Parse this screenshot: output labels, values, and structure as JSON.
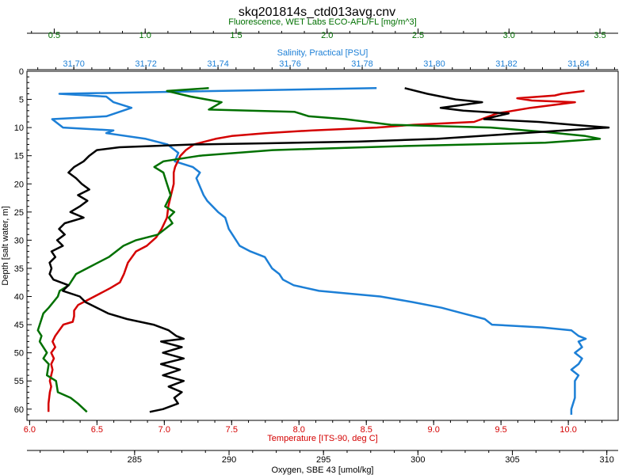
{
  "chart_data": {
    "type": "line",
    "title": "skq201814s_ctd013avg.cnv",
    "y_axis": {
      "label": "Depth [salt water, m]",
      "range": [
        0,
        62
      ],
      "inverted": true,
      "ticks": [
        0,
        5,
        10,
        15,
        20,
        25,
        30,
        35,
        40,
        45,
        50,
        55,
        60
      ],
      "tick_labels": [
        "0",
        "5",
        "10",
        "15",
        "20",
        "25",
        "30",
        "35",
        "40",
        "45",
        "50",
        "55",
        "60"
      ]
    },
    "x_axes": {
      "fluorescence": {
        "label": "Fluorescence, WET Labs ECO-AFL/FL [mg/m^3]",
        "color": "#007000",
        "position": "top",
        "range": [
          0.35,
          3.6
        ],
        "ticks": [
          0.5,
          1.0,
          1.5,
          2.0,
          2.5,
          3.0,
          3.5
        ],
        "tick_labels": [
          "0.5",
          "1.0",
          "1.5",
          "2.0",
          "2.5",
          "3.0",
          "3.5"
        ]
      },
      "salinity": {
        "label": "Salinity, Practical [PSU]",
        "color": "#1c7fd6",
        "position": "top",
        "range": [
          31.687,
          31.851
        ],
        "ticks": [
          31.7,
          31.72,
          31.74,
          31.76,
          31.78,
          31.8,
          31.82,
          31.84
        ],
        "tick_labels": [
          "31.70",
          "31.72",
          "31.74",
          "31.76",
          "31.78",
          "31.80",
          "31.82",
          "31.84"
        ]
      },
      "temperature": {
        "label": "Temperature [ITS-90, deg C]",
        "color": "#d40000",
        "position": "bottom",
        "range": [
          5.98,
          10.37
        ],
        "ticks": [
          6.0,
          6.5,
          7.0,
          7.5,
          8.0,
          8.5,
          9.0,
          9.5,
          10.0
        ],
        "tick_labels": [
          "6.0",
          "6.5",
          "7.0",
          "7.5",
          "8.0",
          "8.5",
          "9.0",
          "9.5",
          "10.0"
        ]
      },
      "oxygen": {
        "label": "Oxygen, SBE 43 [umol/kg]",
        "color": "#000000",
        "position": "bottom",
        "range": [
          279.3,
          310.6
        ],
        "ticks": [
          285,
          290,
          295,
          300,
          305,
          310
        ],
        "tick_labels": [
          "285",
          "290",
          "295",
          "300",
          "305",
          "310"
        ]
      }
    },
    "series": [
      {
        "name": "Salinity",
        "axis": "salinity",
        "color": "#1c7fd6",
        "points": [
          [
            31.784,
            3
          ],
          [
            31.696,
            4
          ],
          [
            31.709,
            4.5
          ],
          [
            31.711,
            5.5
          ],
          [
            31.716,
            6.5
          ],
          [
            31.709,
            8
          ],
          [
            31.694,
            8.5
          ],
          [
            31.697,
            10
          ],
          [
            31.711,
            10.5
          ],
          [
            31.709,
            11
          ],
          [
            31.72,
            12
          ],
          [
            31.726,
            13
          ],
          [
            31.729,
            14.5
          ],
          [
            31.728,
            16
          ],
          [
            31.733,
            17
          ],
          [
            31.735,
            18
          ],
          [
            31.734,
            19
          ],
          [
            31.736,
            22
          ],
          [
            31.737,
            23
          ],
          [
            31.74,
            25
          ],
          [
            31.742,
            26
          ],
          [
            31.743,
            28
          ],
          [
            31.744,
            29
          ],
          [
            31.746,
            31
          ],
          [
            31.749,
            32
          ],
          [
            31.753,
            33
          ],
          [
            31.755,
            35
          ],
          [
            31.757,
            36
          ],
          [
            31.758,
            37
          ],
          [
            31.761,
            38
          ],
          [
            31.768,
            39
          ],
          [
            31.785,
            40
          ],
          [
            31.794,
            41
          ],
          [
            31.802,
            42
          ],
          [
            31.808,
            43
          ],
          [
            31.814,
            44
          ],
          [
            31.816,
            45
          ],
          [
            31.83,
            45.5
          ],
          [
            31.838,
            46
          ],
          [
            31.84,
            47
          ],
          [
            31.842,
            47.5
          ],
          [
            31.84,
            48
          ],
          [
            31.841,
            49
          ],
          [
            31.839,
            50
          ],
          [
            31.841,
            51
          ],
          [
            31.84,
            52
          ],
          [
            31.838,
            53
          ],
          [
            31.84,
            54
          ],
          [
            31.839,
            55
          ],
          [
            31.839,
            56
          ],
          [
            31.839,
            58
          ],
          [
            31.838,
            60
          ],
          [
            31.838,
            61
          ]
        ]
      },
      {
        "name": "Temperature",
        "axis": "temperature",
        "color": "#d40000",
        "points": [
          [
            10.12,
            3.5
          ],
          [
            9.95,
            4
          ],
          [
            9.9,
            4.3
          ],
          [
            9.62,
            4.8
          ],
          [
            9.73,
            5.2
          ],
          [
            10.05,
            5.5
          ],
          [
            9.72,
            6.5
          ],
          [
            9.47,
            7.5
          ],
          [
            9.3,
            9
          ],
          [
            8.85,
            9.5
          ],
          [
            8.58,
            10
          ],
          [
            8.1,
            10.5
          ],
          [
            7.75,
            11
          ],
          [
            7.5,
            11.5
          ],
          [
            7.38,
            12
          ],
          [
            7.3,
            12.5
          ],
          [
            7.22,
            13
          ],
          [
            7.16,
            14
          ],
          [
            7.12,
            15
          ],
          [
            7.1,
            16
          ],
          [
            7.08,
            17
          ],
          [
            7.07,
            18
          ],
          [
            7.07,
            20
          ],
          [
            7.05,
            22
          ],
          [
            7.03,
            24
          ],
          [
            7.02,
            26
          ],
          [
            6.98,
            28
          ],
          [
            6.94,
            29.5
          ],
          [
            6.87,
            31
          ],
          [
            6.79,
            32
          ],
          [
            6.73,
            34
          ],
          [
            6.7,
            36
          ],
          [
            6.67,
            37.5
          ],
          [
            6.6,
            38.5
          ],
          [
            6.52,
            39.5
          ],
          [
            6.44,
            40.5
          ],
          [
            6.36,
            41.5
          ],
          [
            6.33,
            42.5
          ],
          [
            6.33,
            43.5
          ],
          [
            6.32,
            44.5
          ],
          [
            6.25,
            45
          ],
          [
            6.22,
            46
          ],
          [
            6.19,
            47
          ],
          [
            6.17,
            48
          ],
          [
            6.19,
            49
          ],
          [
            6.16,
            50
          ],
          [
            6.18,
            51
          ],
          [
            6.16,
            52
          ],
          [
            6.17,
            53
          ],
          [
            6.15,
            55
          ],
          [
            6.16,
            56
          ],
          [
            6.15,
            57
          ],
          [
            6.14,
            59
          ],
          [
            6.14,
            60.5
          ]
        ]
      },
      {
        "name": "Fluorescence",
        "axis": "fluorescence",
        "color": "#007000",
        "points": [
          [
            1.35,
            3
          ],
          [
            1.12,
            3.5
          ],
          [
            1.25,
            4.5
          ],
          [
            1.42,
            5.5
          ],
          [
            1.35,
            6.8
          ],
          [
            1.82,
            7.2
          ],
          [
            1.9,
            8
          ],
          [
            2.1,
            8.5
          ],
          [
            2.35,
            9.5
          ],
          [
            2.9,
            10
          ],
          [
            3.2,
            10.8
          ],
          [
            3.42,
            11.5
          ],
          [
            3.5,
            12
          ],
          [
            3.2,
            12.7
          ],
          [
            2.4,
            13.3
          ],
          [
            1.7,
            14
          ],
          [
            1.3,
            15
          ],
          [
            1.1,
            16
          ],
          [
            1.05,
            17
          ],
          [
            1.1,
            18
          ],
          [
            1.12,
            20
          ],
          [
            1.14,
            22
          ],
          [
            1.11,
            24
          ],
          [
            1.16,
            25
          ],
          [
            1.13,
            26
          ],
          [
            1.15,
            27
          ],
          [
            1.11,
            28
          ],
          [
            1.07,
            29
          ],
          [
            0.95,
            30
          ],
          [
            0.88,
            31
          ],
          [
            0.8,
            33
          ],
          [
            0.74,
            34
          ],
          [
            0.68,
            35
          ],
          [
            0.62,
            36
          ],
          [
            0.6,
            37
          ],
          [
            0.58,
            38
          ],
          [
            0.53,
            39
          ],
          [
            0.52,
            40
          ],
          [
            0.47,
            42
          ],
          [
            0.44,
            43
          ],
          [
            0.43,
            44
          ],
          [
            0.42,
            45
          ],
          [
            0.41,
            46
          ],
          [
            0.43,
            47
          ],
          [
            0.42,
            48
          ],
          [
            0.46,
            50
          ],
          [
            0.44,
            51
          ],
          [
            0.47,
            52
          ],
          [
            0.46,
            54
          ],
          [
            0.51,
            55
          ],
          [
            0.52,
            57
          ],
          [
            0.59,
            58
          ],
          [
            0.63,
            59
          ],
          [
            0.68,
            60.5
          ]
        ]
      },
      {
        "name": "Oxygen",
        "axis": "oxygen",
        "color": "#000000",
        "points": [
          [
            299.3,
            3
          ],
          [
            300.5,
            4
          ],
          [
            302.0,
            5
          ],
          [
            303.4,
            5.5
          ],
          [
            301.2,
            6.5
          ],
          [
            302.4,
            7
          ],
          [
            304.8,
            7.5
          ],
          [
            303.5,
            8.5
          ],
          [
            306.4,
            9
          ],
          [
            308.2,
            9.5
          ],
          [
            310.1,
            10
          ],
          [
            305.5,
            11
          ],
          [
            301.0,
            12
          ],
          [
            296.8,
            12.5
          ],
          [
            292.0,
            12.8
          ],
          [
            288.1,
            13
          ],
          [
            284.2,
            13.5
          ],
          [
            283.0,
            14
          ],
          [
            282.6,
            15
          ],
          [
            282.3,
            16
          ],
          [
            281.8,
            17
          ],
          [
            281.5,
            18
          ],
          [
            281.9,
            19
          ],
          [
            282.2,
            20
          ],
          [
            282.6,
            21
          ],
          [
            282.0,
            22
          ],
          [
            282.5,
            23
          ],
          [
            282.1,
            24
          ],
          [
            281.6,
            25
          ],
          [
            282.3,
            26
          ],
          [
            281.3,
            27
          ],
          [
            281.0,
            28
          ],
          [
            281.3,
            29
          ],
          [
            280.9,
            30
          ],
          [
            281.2,
            31
          ],
          [
            280.6,
            32
          ],
          [
            280.8,
            33
          ],
          [
            280.5,
            34
          ],
          [
            280.6,
            35
          ],
          [
            280.5,
            36
          ],
          [
            280.7,
            37
          ],
          [
            281.5,
            38
          ],
          [
            281.2,
            39
          ],
          [
            282.1,
            40
          ],
          [
            282.4,
            41
          ],
          [
            283.0,
            42
          ],
          [
            283.6,
            43
          ],
          [
            284.6,
            44
          ],
          [
            286.0,
            45
          ],
          [
            286.8,
            46
          ],
          [
            287.2,
            47
          ],
          [
            287.6,
            47.5
          ],
          [
            286.4,
            48
          ],
          [
            287.5,
            49
          ],
          [
            286.5,
            50
          ],
          [
            287.6,
            51
          ],
          [
            286.4,
            52
          ],
          [
            287.4,
            53
          ],
          [
            286.5,
            54
          ],
          [
            287.6,
            55
          ],
          [
            286.8,
            56
          ],
          [
            287.5,
            57
          ],
          [
            287.1,
            58
          ],
          [
            287.3,
            59
          ],
          [
            286.5,
            60
          ],
          [
            285.8,
            60.5
          ]
        ]
      }
    ],
    "grid": false,
    "legend": "none"
  }
}
